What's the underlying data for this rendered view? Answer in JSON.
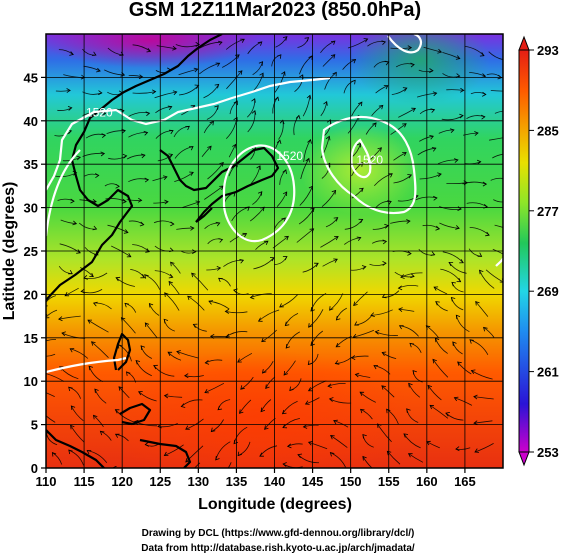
{
  "chart_data": {
    "type": "heatmap",
    "title": "GSM 12Z11Mar2023 (850.0hPa)",
    "xlabel": "Longitude (degrees)",
    "ylabel": "Latitude  (degrees)",
    "xlim": [
      110,
      170
    ],
    "ylim": [
      0,
      50
    ],
    "x_ticks": [
      "110",
      "115",
      "120",
      "125",
      "130",
      "135",
      "140",
      "145",
      "150",
      "155",
      "160",
      "165"
    ],
    "y_ticks": [
      "0",
      "5",
      "10",
      "15",
      "20",
      "25",
      "30",
      "35",
      "40",
      "45"
    ],
    "colorbar": {
      "range": [
        253,
        293
      ],
      "ticks": [
        "293",
        "285",
        "277",
        "269",
        "261",
        "253"
      ],
      "colors": [
        "#cc00cc",
        "#2a14d6",
        "#1f8cf0",
        "#22d6e6",
        "#22c85a",
        "#8ee628",
        "#e8e000",
        "#f4a600",
        "#ff5a00",
        "#e41e14"
      ]
    },
    "contours": [
      {
        "label": "1520",
        "x": 117,
        "y": 40.5
      },
      {
        "label": "1520",
        "x": 142,
        "y": 35.5
      },
      {
        "label": "1520",
        "x": 152.5,
        "y": 35
      }
    ],
    "colors": {
      "land": "#000000",
      "contour": "#ffffff",
      "grid": "#000000"
    }
  },
  "credits": {
    "line1": "Drawing by DCL (https://www.gfd-dennou.org/library/dcl/)",
    "line2": "Data from http://database.rish.kyoto-u.ac.jp/arch/jmadata/"
  }
}
